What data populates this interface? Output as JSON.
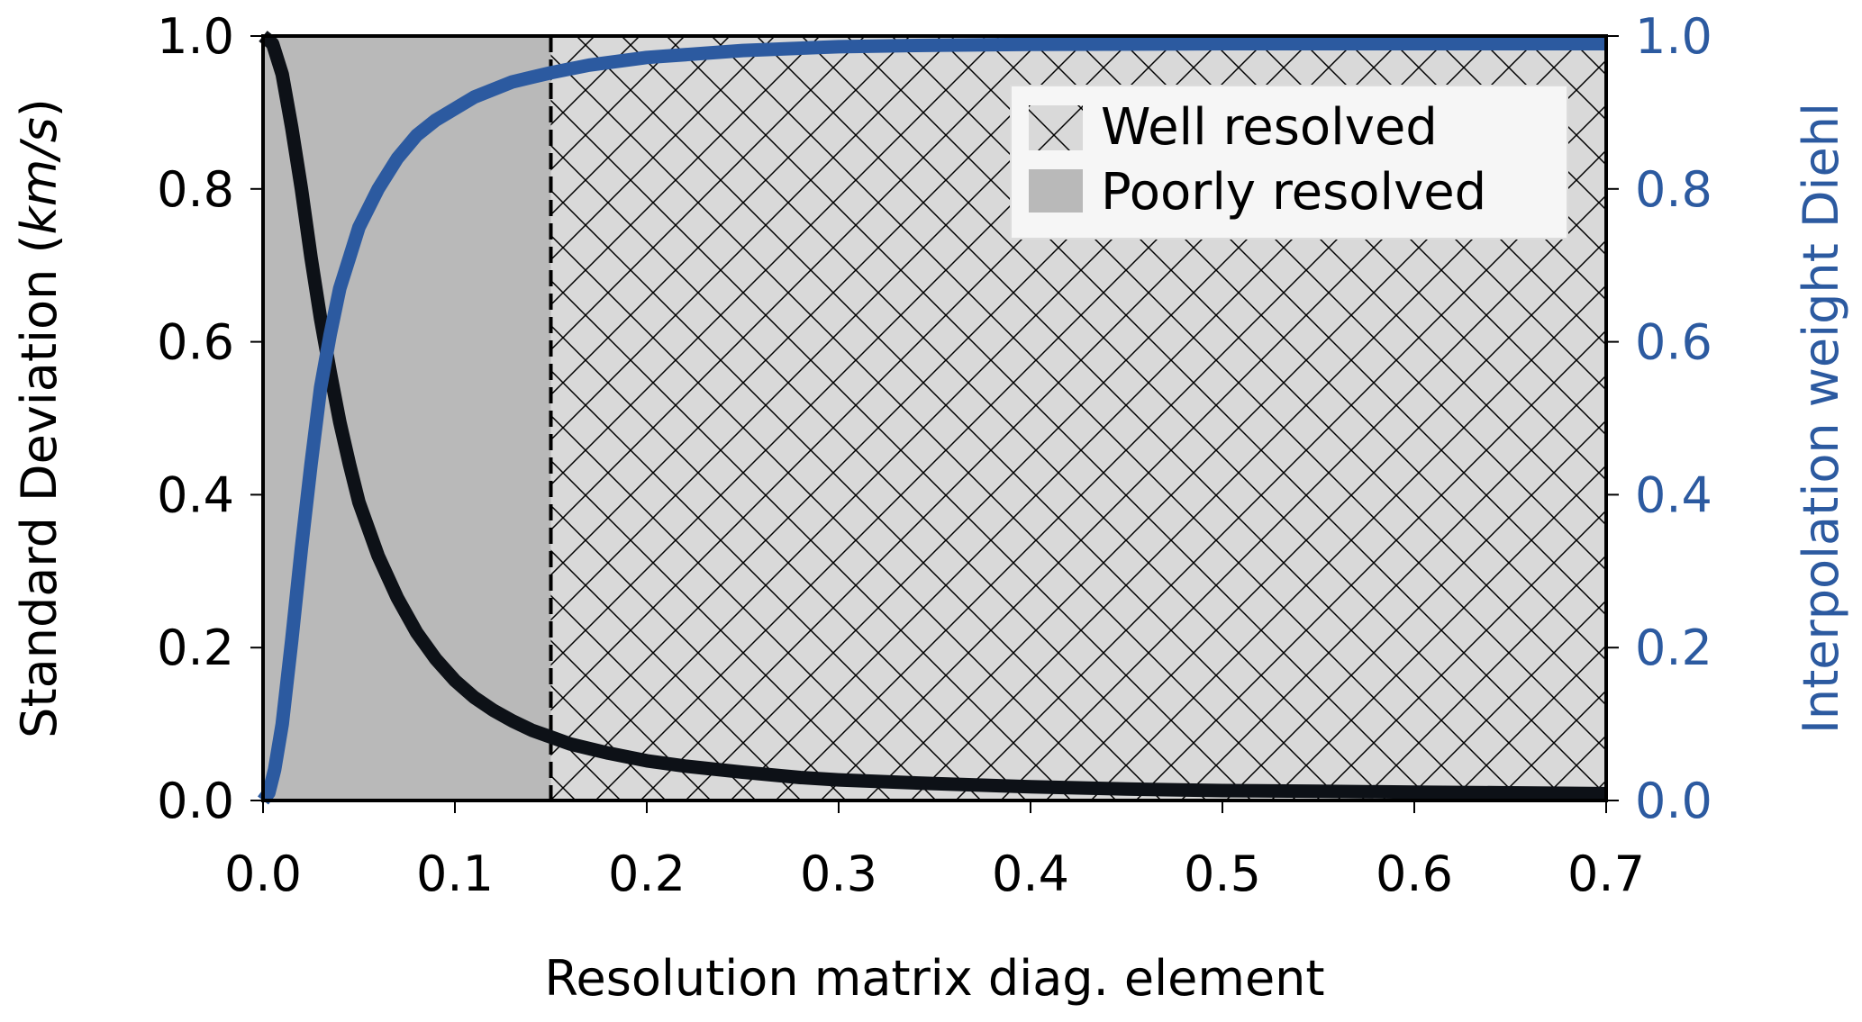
{
  "chart_data": {
    "type": "line",
    "xlabel": "Resolution matrix diag. element",
    "ylabel_left_prefix": "Standard Deviation (",
    "ylabel_left_unit": "km/s",
    "ylabel_left_suffix": ")",
    "ylabel_right": "Interpolation weight Diehl",
    "xlim": [
      0.0,
      0.7
    ],
    "ylim_left": [
      0.0,
      1.0
    ],
    "ylim_right": [
      0.0,
      1.0
    ],
    "x_ticks": [
      "0.0",
      "0.1",
      "0.2",
      "0.3",
      "0.4",
      "0.5",
      "0.6",
      "0.7"
    ],
    "y_left_ticks": [
      "0.0",
      "0.2",
      "0.4",
      "0.6",
      "0.8",
      "1.0"
    ],
    "y_right_ticks": [
      "0.0",
      "0.2",
      "0.4",
      "0.6",
      "0.8",
      "1.0"
    ],
    "threshold_x": 0.15,
    "regions": [
      {
        "label": "Poorly resolved",
        "x_range": [
          0.0,
          0.15
        ],
        "fill": "#b9b9b9",
        "hatch": false
      },
      {
        "label": "Well resolved",
        "x_range": [
          0.15,
          0.7
        ],
        "fill": "#d9d9d9",
        "hatch": true
      }
    ],
    "legend": {
      "placement": "top-right",
      "entries": [
        "Well resolved",
        "Poorly resolved"
      ]
    },
    "series": [
      {
        "axis": "left",
        "color": "#0d1117",
        "x": [
          0.0,
          0.005,
          0.01,
          0.015,
          0.02,
          0.025,
          0.03,
          0.035,
          0.04,
          0.045,
          0.05,
          0.06,
          0.07,
          0.08,
          0.09,
          0.1,
          0.11,
          0.12,
          0.13,
          0.14,
          0.15,
          0.16,
          0.18,
          0.2,
          0.22,
          0.25,
          0.28,
          0.3,
          0.35,
          0.4,
          0.45,
          0.5,
          0.55,
          0.6,
          0.65,
          0.7
        ],
        "y": [
          1.0,
          0.99,
          0.95,
          0.88,
          0.8,
          0.71,
          0.63,
          0.56,
          0.495,
          0.44,
          0.39,
          0.32,
          0.265,
          0.22,
          0.185,
          0.157,
          0.135,
          0.118,
          0.104,
          0.092,
          0.083,
          0.074,
          0.062,
          0.052,
          0.045,
          0.037,
          0.03,
          0.027,
          0.022,
          0.018,
          0.015,
          0.013,
          0.012,
          0.011,
          0.01,
          0.009
        ]
      },
      {
        "axis": "right",
        "color": "#2c5aa0",
        "x": [
          0.0,
          0.003,
          0.006,
          0.01,
          0.015,
          0.02,
          0.025,
          0.03,
          0.035,
          0.04,
          0.045,
          0.05,
          0.06,
          0.07,
          0.08,
          0.09,
          0.1,
          0.11,
          0.12,
          0.13,
          0.14,
          0.15,
          0.17,
          0.2,
          0.25,
          0.3,
          0.35,
          0.4,
          0.5,
          0.6,
          0.7
        ],
        "y": [
          0.0,
          0.01,
          0.04,
          0.1,
          0.21,
          0.33,
          0.44,
          0.54,
          0.61,
          0.67,
          0.71,
          0.75,
          0.8,
          0.84,
          0.87,
          0.89,
          0.905,
          0.92,
          0.93,
          0.94,
          0.946,
          0.952,
          0.962,
          0.972,
          0.981,
          0.986,
          0.988,
          0.989,
          0.99,
          0.99,
          0.99
        ]
      }
    ]
  }
}
